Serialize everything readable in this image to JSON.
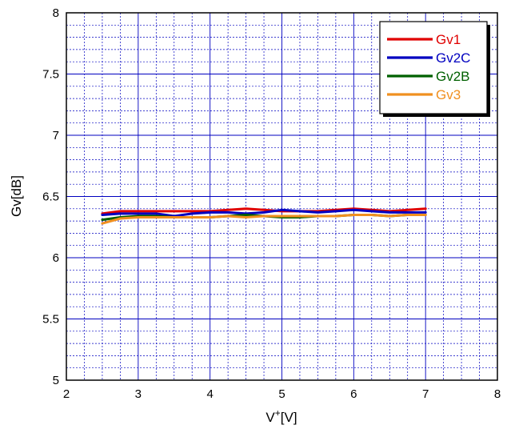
{
  "chart_data": {
    "type": "line",
    "title": "",
    "xlabel_main": "V",
    "xlabel_sup": "+",
    "xlabel_unit": "[V]",
    "ylabel": "Gv[dB]",
    "xlim": [
      2,
      8
    ],
    "ylim": [
      5,
      8
    ],
    "x_ticks": [
      "2",
      "3",
      "4",
      "5",
      "6",
      "7",
      "8"
    ],
    "y_ticks": [
      "5",
      "5.5",
      "6",
      "6.5",
      "7",
      "7.5",
      "8"
    ],
    "grid": true,
    "legend_position": "top-right",
    "series": [
      {
        "name": "Gv1",
        "color": "#e00000",
        "x": [
          2.5,
          2.75,
          3.0,
          3.25,
          3.5,
          3.75,
          4.0,
          4.25,
          4.5,
          4.75,
          5.0,
          5.25,
          5.5,
          5.75,
          6.0,
          6.25,
          6.5,
          6.75,
          7.0
        ],
        "y": [
          6.36,
          6.38,
          6.38,
          6.38,
          6.38,
          6.38,
          6.38,
          6.39,
          6.4,
          6.39,
          6.38,
          6.38,
          6.38,
          6.39,
          6.4,
          6.39,
          6.38,
          6.39,
          6.4
        ]
      },
      {
        "name": "Gv2C",
        "color": "#0000c0",
        "x": [
          2.5,
          2.75,
          3.0,
          3.25,
          3.5,
          3.75,
          4.0,
          4.25,
          4.5,
          4.75,
          5.0,
          5.25,
          5.5,
          5.75,
          6.0,
          6.25,
          6.5,
          6.75,
          7.0
        ],
        "y": [
          6.35,
          6.36,
          6.36,
          6.36,
          6.34,
          6.36,
          6.37,
          6.37,
          6.36,
          6.37,
          6.39,
          6.38,
          6.37,
          6.38,
          6.39,
          6.38,
          6.37,
          6.37,
          6.37
        ]
      },
      {
        "name": "Gv2B",
        "color": "#006000",
        "x": [
          2.5,
          2.75,
          3.0,
          3.25,
          3.5,
          3.75,
          4.0,
          4.25,
          4.5,
          4.75,
          5.0,
          5.25,
          5.5,
          5.75,
          6.0,
          6.25,
          6.5,
          6.75,
          7.0
        ],
        "y": [
          6.31,
          6.33,
          6.34,
          6.34,
          6.33,
          6.33,
          6.33,
          6.34,
          6.35,
          6.34,
          6.33,
          6.33,
          6.34,
          6.34,
          6.35,
          6.35,
          6.34,
          6.35,
          6.35
        ]
      },
      {
        "name": "Gv3",
        "color": "#f09020",
        "x": [
          2.5,
          2.75,
          3.0,
          3.25,
          3.5,
          3.75,
          4.0,
          4.25,
          4.5,
          4.75,
          5.0,
          5.25,
          5.5,
          5.75,
          6.0,
          6.25,
          6.5,
          6.75,
          7.0
        ],
        "y": [
          6.28,
          6.32,
          6.33,
          6.33,
          6.33,
          6.33,
          6.33,
          6.34,
          6.33,
          6.34,
          6.34,
          6.34,
          6.34,
          6.34,
          6.35,
          6.35,
          6.34,
          6.35,
          6.35
        ]
      }
    ]
  }
}
